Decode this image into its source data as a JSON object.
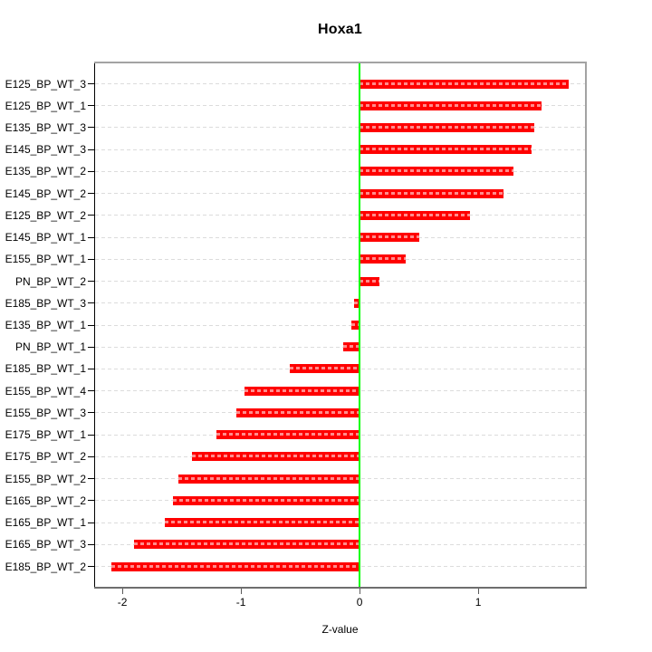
{
  "title": "Hoxa1",
  "chart_data": {
    "type": "bar",
    "orientation": "horizontal",
    "title": "Hoxa1",
    "xlabel": "Z-value",
    "ylabel": "",
    "categories": [
      "E125_BP_WT_3",
      "E125_BP_WT_1",
      "E135_BP_WT_3",
      "E145_BP_WT_3",
      "E135_BP_WT_2",
      "E145_BP_WT_2",
      "E125_BP_WT_2",
      "E145_BP_WT_1",
      "E155_BP_WT_1",
      "PN_BP_WT_2",
      "E185_BP_WT_3",
      "E135_BP_WT_1",
      "PN_BP_WT_1",
      "E185_BP_WT_1",
      "E155_BP_WT_4",
      "E155_BP_WT_3",
      "E175_BP_WT_1",
      "E175_BP_WT_2",
      "E155_BP_WT_2",
      "E165_BP_WT_2",
      "E165_BP_WT_1",
      "E165_BP_WT_3",
      "E185_BP_WT_2"
    ],
    "values": [
      1.76,
      1.53,
      1.47,
      1.45,
      1.3,
      1.21,
      0.93,
      0.5,
      0.39,
      0.17,
      -0.05,
      -0.07,
      -0.14,
      -0.59,
      -0.97,
      -1.04,
      -1.21,
      -1.41,
      -1.53,
      -1.57,
      -1.64,
      -1.9,
      -2.09
    ],
    "xticks": [
      -2,
      -1,
      0,
      1
    ],
    "xlim": [
      -2.23,
      1.9
    ],
    "grid": true,
    "legend": false,
    "colors": {
      "bar": "#ff0000",
      "zero_line": "#00ff00",
      "grid": "#dcdcdc",
      "box": "#a3a3a3",
      "axis": "#6e6e6e",
      "text": "#000000"
    }
  }
}
